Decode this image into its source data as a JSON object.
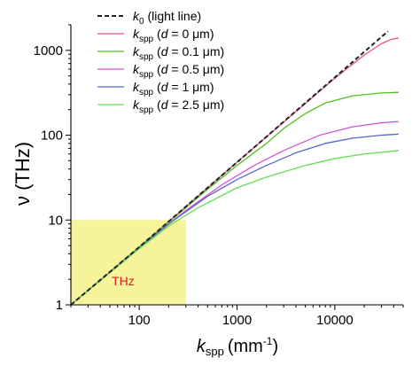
{
  "chart_data": {
    "type": "line",
    "xlabel": {
      "main": "k",
      "sub": "spp",
      "unit": "(mm",
      "unit_sup": "-1",
      "unit_end": ")"
    },
    "ylabel": "ν (THz)",
    "xscale": "log",
    "yscale": "log",
    "xlim": [
      20,
      50000
    ],
    "ylim": [
      1,
      2000
    ],
    "xticks": [
      {
        "value": 100,
        "label": "100"
      },
      {
        "value": 1000,
        "label": "1000"
      },
      {
        "value": 10000,
        "label": "10000"
      }
    ],
    "yticks": [
      {
        "value": 1,
        "label": "1"
      },
      {
        "value": 10,
        "label": "10"
      },
      {
        "value": 100,
        "label": "100"
      },
      {
        "value": 1000,
        "label": "1000"
      }
    ],
    "legend_position": "top-left",
    "highlight_region": {
      "x": [
        20,
        300
      ],
      "y": [
        1,
        10
      ],
      "color": "#f7f39a",
      "label": "THz",
      "label_color": "#d62020"
    },
    "series": [
      {
        "name": "k0 (light line)",
        "legend": {
          "k": "k",
          "sub": "0",
          "rest": " (light line)"
        },
        "color": "#222222",
        "dash": true,
        "x": [
          20,
          100,
          1000,
          10000,
          35000
        ],
        "y": [
          1,
          4.8,
          48,
          480,
          1680
        ]
      },
      {
        "name": "kspp (d = 0 μm)",
        "legend": {
          "k": "k",
          "sub": "spp",
          "pre": " (",
          "d": "d",
          "rest": " = 0 μm)"
        },
        "color": "#e8508a",
        "dash": false,
        "x": [
          20,
          100,
          1000,
          10000,
          20000,
          30000,
          38000,
          45000
        ],
        "y": [
          1,
          4.8,
          48,
          470,
          880,
          1200,
          1350,
          1400
        ]
      },
      {
        "name": "kspp (d = 0.1 μm)",
        "legend": {
          "k": "k",
          "sub": "spp",
          "pre": " (",
          "d": "d",
          "rest": " = 0.1 μm)"
        },
        "color": "#4fc21e",
        "dash": false,
        "x": [
          20,
          100,
          500,
          1000,
          2000,
          3000,
          5000,
          8000,
          15000,
          30000,
          45000
        ],
        "y": [
          1,
          4.8,
          23,
          44,
          80,
          120,
          180,
          240,
          290,
          315,
          320
        ]
      },
      {
        "name": "kspp (d = 0.5 μm)",
        "legend": {
          "k": "k",
          "sub": "spp",
          "pre": " (",
          "d": "d",
          "rest": " = 0.5 μm)"
        },
        "color": "#d454d8",
        "dash": false,
        "x": [
          20,
          100,
          300,
          700,
          1500,
          3000,
          7000,
          15000,
          30000,
          45000
        ],
        "y": [
          1,
          4.7,
          13,
          26,
          44,
          66,
          100,
          125,
          140,
          145
        ]
      },
      {
        "name": "kspp (d = 1 μm)",
        "legend": {
          "k": "k",
          "sub": "spp",
          "pre": " (",
          "d": "d",
          "rest": " = 1 μm)"
        },
        "color": "#5566cc",
        "dash": false,
        "x": [
          20,
          100,
          200,
          500,
          1000,
          2000,
          4000,
          8000,
          15000,
          30000,
          45000
        ],
        "y": [
          1,
          4.7,
          9,
          19,
          30,
          44,
          62,
          80,
          92,
          100,
          103
        ]
      },
      {
        "name": "kspp (d = 2.5 μm)",
        "legend": {
          "k": "k",
          "sub": "spp",
          "pre": " (",
          "d": "d",
          "rest": " = 2.5 μm)"
        },
        "color": "#66dd55",
        "dash": false,
        "x": [
          20,
          100,
          200,
          400,
          1000,
          2000,
          5000,
          10000,
          20000,
          45000
        ],
        "y": [
          1,
          4.6,
          8.5,
          14,
          24,
          32,
          44,
          53,
          60,
          66
        ]
      }
    ]
  }
}
